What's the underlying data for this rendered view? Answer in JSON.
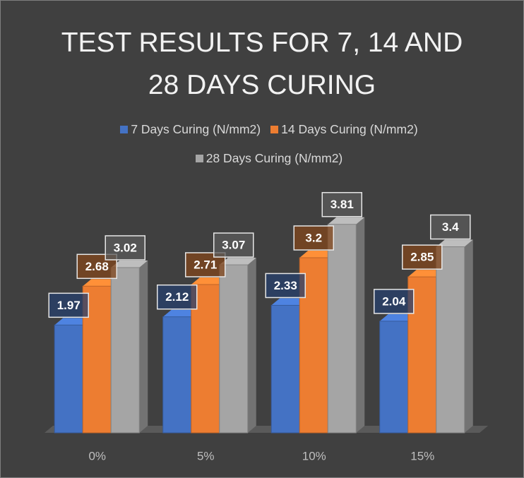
{
  "chart_data": {
    "type": "bar3d",
    "title": "TEST RESULTS FOR 7, 14 AND 28 DAYS CURING",
    "categories": [
      "0%",
      "5%",
      "10%",
      "15%"
    ],
    "series": [
      {
        "name": "7 Days Curing (N/mm2)",
        "color": "#4472c4",
        "values": [
          1.97,
          2.12,
          2.33,
          2.04
        ]
      },
      {
        "name": "14 Days Curing (N/mm2)",
        "color": "#ed7d31",
        "values": [
          2.68,
          2.71,
          3.2,
          2.85
        ]
      },
      {
        "name": "28 Days Curing (N/mm2)",
        "color": "#a5a5a5",
        "values": [
          3.02,
          3.07,
          3.81,
          3.4
        ]
      }
    ]
  }
}
